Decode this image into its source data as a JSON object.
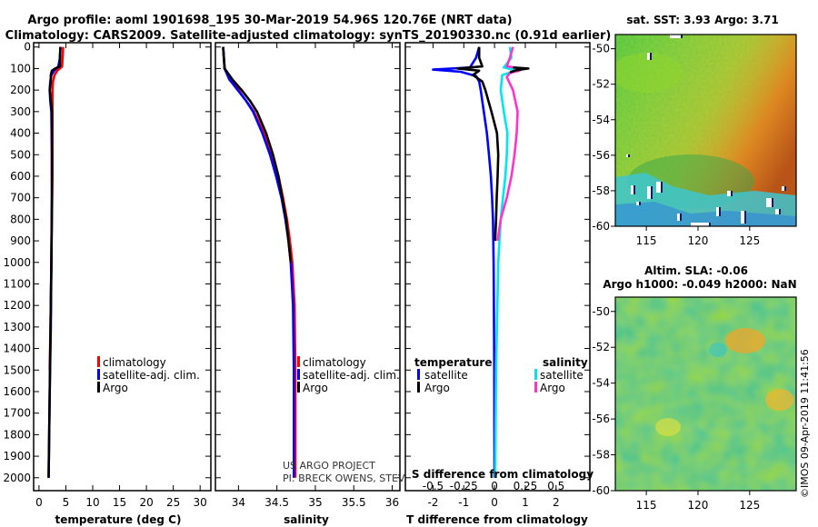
{
  "title_line1": "Argo profile: aoml 1901698_195 30-Mar-2019 54.96S 120.76E (NRT data)",
  "title_line2": "Climatology: CARS2009. Satellite-adjusted climatology: synTS_20190330.nc (0.91d earlier)",
  "credit_line1": "US ARGO PROJECT",
  "credit_line2": "PI: BRECK OWENS, STEVE JAYNE, AND P.E. ROBBINS",
  "side_stamp": "©IMOS 09-Apr-2019 11:41:56",
  "colors": {
    "climatology": "#ff0000",
    "satellite": "#0000ff",
    "argo": "#000000",
    "sat_salinity": "#00e5ee",
    "argo_salinity": "#ff33cc"
  },
  "chart_data": [
    {
      "id": "temperature",
      "type": "line",
      "xlabel": "temperature (deg C)",
      "xlim": [
        -1,
        32
      ],
      "ylim": [
        2060,
        -20
      ],
      "xticks": [
        0,
        5,
        10,
        15,
        20,
        25,
        30
      ],
      "xtick_labels": [
        "0",
        "5",
        "10",
        "15",
        "20",
        "25",
        "30"
      ],
      "yticks": [
        0,
        100,
        200,
        300,
        400,
        500,
        600,
        700,
        800,
        900,
        1000,
        1100,
        1200,
        1300,
        1400,
        1500,
        1600,
        1700,
        1800,
        1900,
        2000
      ],
      "ytick_labels": [
        "0",
        "100",
        "200",
        "300",
        "400",
        "500",
        "600",
        "700",
        "800",
        "900",
        "1000",
        "1100",
        "1200",
        "1300",
        "1400",
        "1500",
        "1600",
        "1700",
        "1800",
        "1900",
        "2000"
      ],
      "legend": [
        "climatology",
        "satellite-adj. clim.",
        "Argo"
      ],
      "series": [
        {
          "name": "climatology",
          "color": "#ff0000",
          "depth": [
            0,
            50,
            90,
            110,
            130,
            160,
            200,
            250,
            300,
            400,
            600,
            800,
            1000,
            1200,
            1500
          ],
          "values": [
            4.5,
            4.4,
            4.3,
            3.4,
            2.9,
            2.6,
            2.5,
            2.5,
            2.5,
            2.5,
            2.5,
            2.4,
            2.3,
            2.2,
            2.0
          ]
        },
        {
          "name": "satellite-adj. clim.",
          "color": "#0000ff",
          "depth": [
            0,
            50,
            90,
            110,
            130,
            160,
            200,
            250,
            300,
            500,
            700,
            1000,
            1300,
            1600,
            2000
          ],
          "values": [
            4.0,
            3.9,
            3.6,
            2.8,
            2.3,
            2.1,
            2.0,
            2.1,
            2.3,
            2.4,
            2.4,
            2.3,
            2.2,
            2.0,
            1.8
          ]
        },
        {
          "name": "Argo",
          "color": "#000000",
          "depth": [
            0,
            40,
            90,
            100,
            110,
            130,
            160,
            200,
            250,
            300,
            500,
            700,
            1000,
            1400,
            1800,
            2000
          ],
          "values": [
            4.0,
            3.9,
            3.9,
            3.0,
            2.4,
            2.2,
            2.2,
            2.0,
            2.2,
            2.4,
            2.4,
            2.4,
            2.3,
            2.1,
            1.9,
            1.8
          ]
        }
      ]
    },
    {
      "id": "salinity",
      "type": "line",
      "xlabel": "salinity",
      "xlim": [
        33.7,
        36.1
      ],
      "ylim": [
        2060,
        -20
      ],
      "xticks": [
        34,
        34.5,
        35,
        35.5,
        36
      ],
      "xtick_labels": [
        "34",
        "34.5",
        "35",
        "35.5",
        "36"
      ],
      "legend": [
        "climatology",
        "satellite-adj. clim.",
        "Argo"
      ],
      "series": [
        {
          "name": "climatology",
          "color": "#ff0000",
          "depth": [
            0,
            100,
            150,
            200,
            250,
            300,
            400,
            500,
            600,
            700,
            800,
            900,
            1000,
            1200,
            1500,
            2000
          ],
          "values": [
            33.8,
            33.82,
            33.9,
            34.0,
            34.1,
            34.2,
            34.33,
            34.43,
            34.52,
            34.58,
            34.63,
            34.67,
            34.7,
            34.73,
            34.74,
            34.74
          ]
        },
        {
          "name": "satellite-adj. clim.",
          "color": "#0000ff",
          "depth": [
            0,
            100,
            150,
            200,
            250,
            300,
            400,
            500,
            600,
            700,
            800,
            900,
            1000,
            1200,
            1500,
            2000
          ],
          "values": [
            33.8,
            33.82,
            33.88,
            33.99,
            34.1,
            34.19,
            34.31,
            34.41,
            34.49,
            34.56,
            34.61,
            34.65,
            34.68,
            34.71,
            34.72,
            34.72
          ]
        },
        {
          "name": "Argo",
          "color": "#000000",
          "depth": [
            0,
            100,
            150,
            200,
            250,
            300,
            400,
            500,
            600,
            700,
            800,
            900,
            1000
          ],
          "values": [
            33.8,
            33.82,
            33.92,
            34.04,
            34.15,
            34.24,
            34.36,
            34.45,
            34.52,
            34.57,
            34.62,
            34.65,
            34.68
          ]
        }
      ]
    },
    {
      "id": "difference",
      "type": "line",
      "xlabel": "T difference from climatology",
      "top_axis_label": "S difference from climatology",
      "xlim": [
        -2.9,
        3.1
      ],
      "ylim": [
        2060,
        -20
      ],
      "xticks": [
        -2,
        -1,
        0,
        1,
        2
      ],
      "xtick_labels": [
        "-2",
        "-1",
        "0",
        "1",
        "2"
      ],
      "top_ticks": [
        -0.5,
        -0.25,
        0,
        0.25,
        0.5
      ],
      "top_tick_labels": [
        "-0.5",
        "-0.25",
        "0",
        "0.25",
        "0.5"
      ],
      "legend_temperature_title": "temperature",
      "legend_salinity_title": "salinity",
      "legend_temperature": [
        "satellite",
        "Argo"
      ],
      "legend_salinity": [
        "satellite",
        "Argo"
      ],
      "series": [
        {
          "name": "T satellite",
          "color": "#0000ff",
          "depth": [
            0,
            50,
            95,
            105,
            115,
            135,
            160,
            200,
            300,
            400,
            500,
            600,
            700,
            800,
            1000,
            1200,
            1500,
            2000
          ],
          "values": [
            -0.5,
            -0.6,
            -0.8,
            -2.0,
            -1.1,
            -0.6,
            -0.5,
            -0.45,
            -0.35,
            -0.25,
            -0.18,
            -0.12,
            -0.08,
            -0.05,
            -0.03,
            -0.02,
            -0.01,
            0
          ]
        },
        {
          "name": "T Argo",
          "color": "#000000",
          "depth": [
            0,
            50,
            90,
            100,
            110,
            130,
            160,
            200,
            300,
            400,
            500,
            600,
            700,
            800,
            900
          ],
          "values": [
            -0.5,
            -0.5,
            -0.4,
            -1.2,
            -0.5,
            -0.7,
            -0.4,
            -0.3,
            -0.1,
            0.08,
            0.12,
            0.1,
            0.07,
            0.05,
            0.02
          ]
        },
        {
          "name": "S satellite",
          "color": "#00e5ee",
          "depth": [
            0,
            50,
            95,
            110,
            130,
            200,
            300,
            400,
            500,
            600,
            800,
            1000,
            1500,
            2000
          ],
          "values": [
            0.5,
            0.55,
            0.3,
            0.7,
            0.25,
            0.2,
            0.3,
            0.42,
            0.4,
            0.35,
            0.2,
            0.12,
            0.05,
            0.02
          ]
        },
        {
          "name": "S Argo",
          "color": "#ff33cc",
          "depth": [
            0,
            50,
            90,
            100,
            110,
            120,
            140,
            200,
            300,
            400,
            500,
            600,
            700,
            800,
            900
          ],
          "values": [
            0.6,
            0.5,
            0.4,
            0.9,
            0.8,
            0.5,
            0.4,
            0.6,
            0.75,
            0.72,
            0.65,
            0.55,
            0.4,
            0.2,
            0.1
          ]
        },
        {
          "name": "S spike",
          "color": "#000000",
          "depth": [
            95,
            100,
            108,
            118
          ],
          "values": [
            0.6,
            1.1,
            0.7,
            0.5
          ]
        }
      ]
    },
    {
      "id": "sst_map",
      "type": "heatmap",
      "title": "sat. SST: 3.93 Argo: 3.71",
      "xticks": [
        115,
        120,
        125
      ],
      "xtick_labels": [
        "115",
        "120",
        "125"
      ],
      "yticks": [
        -50,
        -52,
        -54,
        -56,
        -58,
        -60
      ],
      "ytick_labels": [
        "-50",
        "-52",
        "-54",
        "-56",
        "-58",
        "-60"
      ],
      "xlim": [
        112,
        129.5
      ],
      "ylim": [
        -60,
        -49.2
      ]
    },
    {
      "id": "sla_map",
      "type": "heatmap",
      "title_line1": "Altim. SLA: -0.06",
      "title_line2": "Argo h1000: -0.049 h2000: NaN",
      "xticks": [
        115,
        120,
        125
      ],
      "xtick_labels": [
        "115",
        "120",
        "125"
      ],
      "yticks": [
        -50,
        -52,
        -54,
        -56,
        -58,
        -60
      ],
      "ytick_labels": [
        "-50",
        "-52",
        "-54",
        "-56",
        "-58",
        "-60"
      ],
      "xlim": [
        112,
        129.5
      ],
      "ylim": [
        -60,
        -49.2
      ]
    }
  ]
}
